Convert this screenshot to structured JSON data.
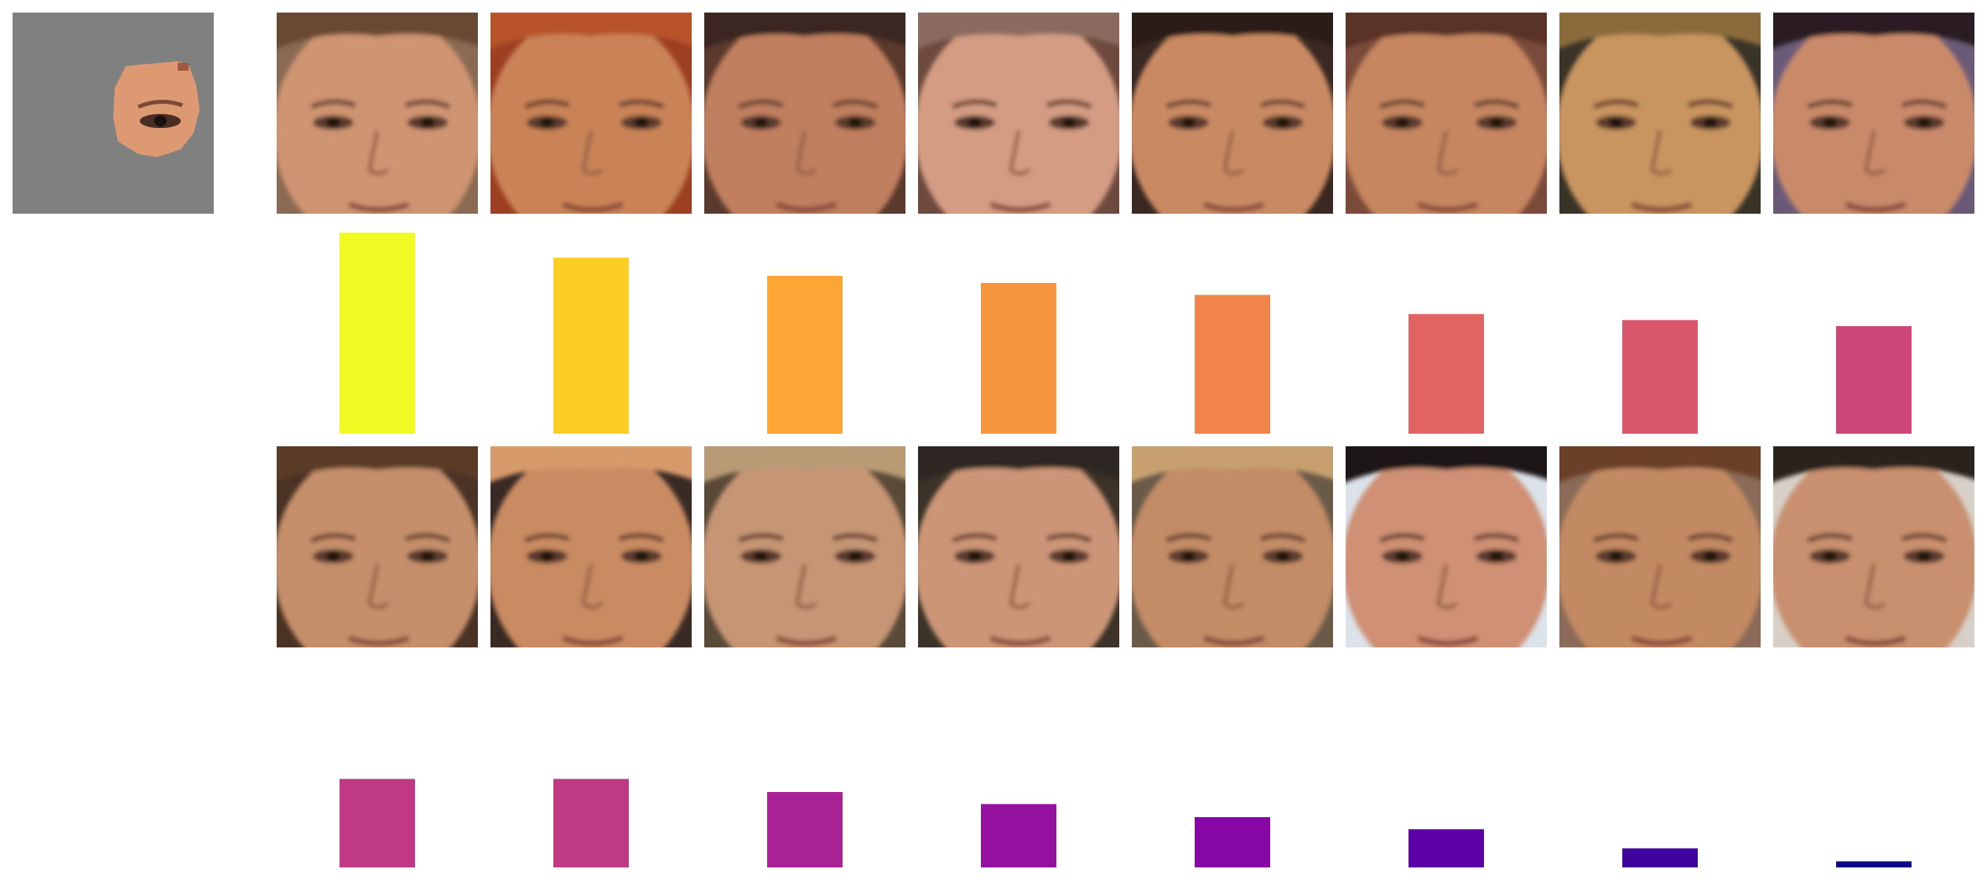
{
  "query_image": {
    "kind": "masked-face-eye-patch",
    "background": "#808080"
  },
  "chart_data": {
    "type": "bar",
    "title": "",
    "xlabel": "",
    "ylabel": "",
    "ylim": [
      0,
      1
    ],
    "grid": false,
    "legend": "none",
    "colormap": "plasma",
    "panels": [
      {
        "row": 1,
        "values": [
          1.0,
          0.875,
          0.785,
          0.75,
          0.69,
          0.595,
          0.565,
          0.535
        ],
        "colors": [
          "#f0f921",
          "#fcce25",
          "#fca636",
          "#f89540",
          "#f2844b",
          "#e16462",
          "#d8576b",
          "#cc4778"
        ]
      },
      {
        "row": 2,
        "values": [
          0.44,
          0.44,
          0.375,
          0.315,
          0.25,
          0.19,
          0.095,
          0.03
        ],
        "colors": [
          "#c03a83",
          "#c03a83",
          "#a82296",
          "#9512a1",
          "#8606a6",
          "#5c01a6",
          "#3e049c",
          "#0d0887"
        ]
      }
    ],
    "thumbnails": [
      [
        {
          "skin": "#cf9472",
          "hair": "#6b4a33",
          "bg": "#8a6a52"
        },
        {
          "skin": "#c98357",
          "hair": "#b8532b",
          "bg": "#9c3f22"
        },
        {
          "skin": "#c07f5e",
          "hair": "#3b2620",
          "bg": "#5a3a2d"
        },
        {
          "skin": "#d39c83",
          "hair": "#8a6a5e",
          "bg": "#6e4a3e"
        },
        {
          "skin": "#c98a64",
          "hair": "#2b1c18",
          "bg": "#3a2822"
        },
        {
          "skin": "#c58661",
          "hair": "#5a3326",
          "bg": "#7a4b3a"
        },
        {
          "skin": "#c8945f",
          "hair": "#8b6a3a",
          "bg": "#3a3428"
        },
        {
          "skin": "#c98a6a",
          "hair": "#2a1f22",
          "bg": "#6a5a78"
        }
      ],
      [
        {
          "skin": "#c48f6b",
          "hair": "#5a3b28",
          "bg": "#4a3224"
        },
        {
          "skin": "#c98b62",
          "hair": "#d79a6a",
          "bg": "#3a2a24"
        },
        {
          "skin": "#c69573",
          "hair": "#b89a74",
          "bg": "#5a4a38"
        },
        {
          "skin": "#cc9577",
          "hair": "#2e2620",
          "bg": "#3c3228"
        },
        {
          "skin": "#c28c66",
          "hair": "#c8a070",
          "bg": "#6a5a48"
        },
        {
          "skin": "#cf9075",
          "hair": "#1e1614",
          "bg": "#dbe2ea"
        },
        {
          "skin": "#c28a62",
          "hair": "#6a4028",
          "bg": "#8a6a58"
        },
        {
          "skin": "#c8906e",
          "hair": "#2a221e",
          "bg": "#d8d0c8"
        }
      ]
    ]
  }
}
